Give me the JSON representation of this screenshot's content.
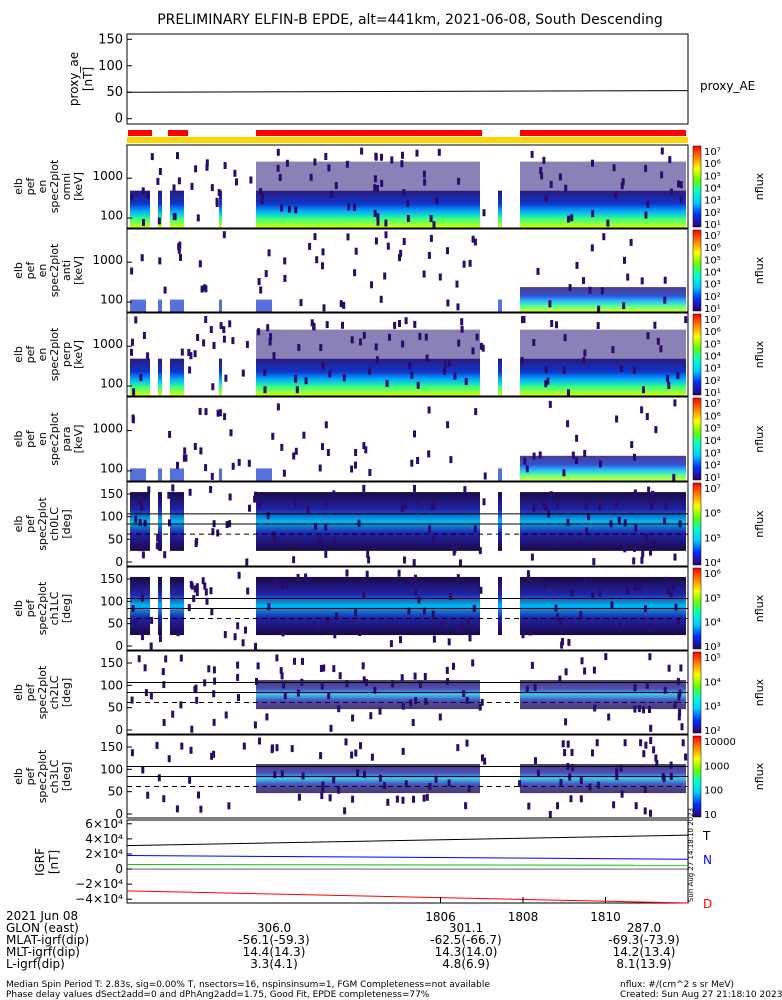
{
  "title": "PRELIMINARY ELFIN-B EPDE, alt=441km, 2021-06-08, South Descending",
  "chart_data": [
    {
      "type": "line",
      "panel": "proxy_ae",
      "ylabel": "proxy_ae [nT]",
      "yticks": [
        0,
        50,
        100,
        150
      ],
      "ylim": [
        -10,
        160
      ],
      "series": [
        {
          "name": "proxy_AE",
          "x": [
            "17:58.4",
            "18:12.0"
          ],
          "values": [
            50,
            53
          ]
        }
      ]
    },
    {
      "type": "heatmap",
      "panel": "elb pef en spec2plot omni [keV]",
      "ylabel": [
        "elb",
        "pef",
        "en",
        "spec2plot",
        "omni",
        "[keV]"
      ],
      "yticks": [
        "1000",
        "100"
      ],
      "colorbar": {
        "label": "nflux",
        "ticks": [
          "10⁷",
          "10⁶",
          "10⁵",
          "10⁴",
          "10³",
          "10²",
          "10¹"
        ]
      }
    },
    {
      "type": "heatmap",
      "panel": "elb pef en spec2plot anti [keV]",
      "ylabel": [
        "elb",
        "pef",
        "en",
        "spec2plot",
        "anti",
        "[keV]"
      ],
      "yticks": [
        "1000",
        "100"
      ],
      "colorbar": {
        "label": "nflux",
        "ticks": [
          "10⁷",
          "10⁶",
          "10⁵",
          "10⁴",
          "10³",
          "10²",
          "10¹"
        ]
      }
    },
    {
      "type": "heatmap",
      "panel": "elb pef en spec2plot perp [keV]",
      "ylabel": [
        "elb",
        "pef",
        "en",
        "spec2plot",
        "perp",
        "[keV]"
      ],
      "yticks": [
        "1000",
        "100"
      ],
      "colorbar": {
        "label": "nflux",
        "ticks": [
          "10⁷",
          "10⁶",
          "10⁵",
          "10⁴",
          "10³",
          "10²",
          "10¹"
        ]
      }
    },
    {
      "type": "heatmap",
      "panel": "elb pef en spec2plot para [keV]",
      "ylabel": [
        "elb",
        "pef",
        "en",
        "spec2plot",
        "para",
        "[keV]"
      ],
      "yticks": [
        "1000",
        "100"
      ],
      "colorbar": {
        "label": "nflux",
        "ticks": [
          "10⁷",
          "10⁶",
          "10⁵",
          "10⁴",
          "10³",
          "10²",
          "10¹"
        ]
      }
    },
    {
      "type": "heatmap",
      "panel": "elb pef spec2plot ch0LC [deg]",
      "ylabel": [
        "elb",
        "pef",
        "spec2plot",
        "ch0LC",
        "[deg]"
      ],
      "yticks": [
        "150",
        "100",
        "50",
        "0"
      ],
      "colorbar": {
        "label": "nflux",
        "ticks": [
          "10⁷",
          "10⁶",
          "10⁵",
          "10⁴"
        ]
      }
    },
    {
      "type": "heatmap",
      "panel": "elb pef spec2plot ch1LC [deg]",
      "ylabel": [
        "elb",
        "pef",
        "spec2plot",
        "ch1LC",
        "[deg]"
      ],
      "yticks": [
        "150",
        "100",
        "50",
        "0"
      ],
      "colorbar": {
        "label": "nflux",
        "ticks": [
          "10⁶",
          "10⁵",
          "10⁴",
          "10³"
        ]
      }
    },
    {
      "type": "heatmap",
      "panel": "elb pef spec2plot ch2LC [deg]",
      "ylabel": [
        "elb",
        "pef",
        "spec2plot",
        "ch2LC",
        "[deg]"
      ],
      "yticks": [
        "150",
        "100",
        "50",
        "0"
      ],
      "colorbar": {
        "label": "nflux",
        "ticks": [
          "10⁵",
          "10⁴",
          "10³",
          "10²"
        ]
      }
    },
    {
      "type": "heatmap",
      "panel": "elb pef spec2plot ch3LC [deg]",
      "ylabel": [
        "elb",
        "pef",
        "spec2plot",
        "ch3LC",
        "[deg]"
      ],
      "yticks": [
        "150",
        "100",
        "50",
        "0"
      ],
      "colorbar": {
        "label": "nflux",
        "ticks": [
          "10000",
          "1000",
          "100",
          "10"
        ]
      }
    },
    {
      "type": "line",
      "panel": "IGRF [nT]",
      "ylabel": [
        "IGRF",
        "[nT]"
      ],
      "yticks": [
        "6×10⁴",
        "4×10⁴",
        "2×10⁴",
        "0",
        "−2×10⁴",
        "−4×10⁴"
      ],
      "ylim": [
        -45000,
        65000
      ],
      "series": [
        {
          "name": "T",
          "color": "#000000",
          "values": [
            31000,
            45000
          ]
        },
        {
          "name": "N",
          "color": "#0000ff",
          "values": [
            18000,
            13000
          ]
        },
        {
          "name": "",
          "color": "#00cc00",
          "values": [
            6000,
            5000
          ]
        },
        {
          "name": "D",
          "color": "#ff0000",
          "values": [
            -29000,
            -45000
          ]
        }
      ]
    }
  ],
  "xaxis": {
    "ticks": [
      "1806",
      "1808",
      "1810"
    ]
  },
  "footer": {
    "rows": [
      {
        "label": "2021 Jun 08",
        "values": [
          "",
          "",
          ""
        ]
      },
      {
        "label": "GLON (east)",
        "values": [
          "306.0",
          "301.1",
          "287.0"
        ]
      },
      {
        "label": "MLAT-igrf(dip)",
        "values": [
          "-56.1(-59.3)",
          "-62.5(-66.7)",
          "-69.3(-73.9)"
        ]
      },
      {
        "label": "MLT-igrf(dip)",
        "values": [
          "14.4(14.3)",
          "14.3(14.0)",
          "14.2(13.4)"
        ]
      },
      {
        "label": "L-igrf(dip)",
        "values": [
          "3.3(4.1)",
          "4.8(6.9)",
          "8.1(13.9)"
        ]
      }
    ],
    "note1": "Median Spin Period T: 2.83s, sig=0.00% T, nsectors=16, nspinsinsum=1, FGM Completeness=not available",
    "note2": "Phase delay values dSect2add=0 and dPhAng2add=1.75, Good Fit, EPDE completeness=77%",
    "units": "nflux: #/(cm^2 s sr MeV)",
    "created": "Created: Sun Aug 27 21:18:10 2023",
    "vertical_stamp": "Sun Aug 27 14:18:10 2023"
  },
  "colors": {
    "red": "#ff0000",
    "yellow": "#ffd700",
    "green": "#00cc00",
    "blue": "#0000ff"
  }
}
